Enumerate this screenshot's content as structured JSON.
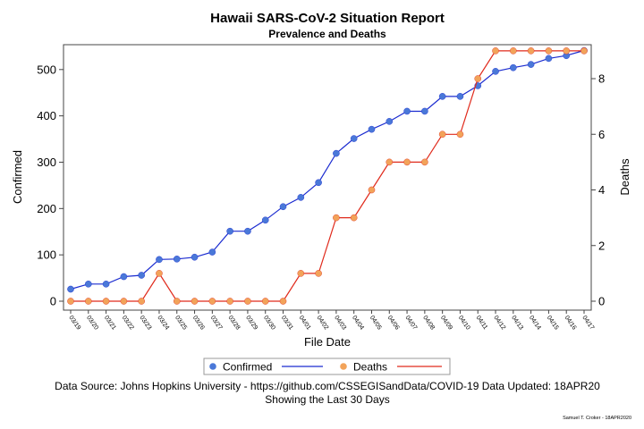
{
  "chart_data": {
    "type": "line",
    "title": "Hawaii SARS-CoV-2 Situation Report",
    "subtitle": "Prevalence and Deaths",
    "xlabel": "File Date",
    "ylabel_left": "Confirmed",
    "ylabel_right": "Deaths",
    "ylim_left": [
      0,
      550
    ],
    "yticks_left": [
      "0",
      "100",
      "200",
      "300",
      "400",
      "500"
    ],
    "ylim_right": [
      0,
      9
    ],
    "yticks_right": [
      "0",
      "2",
      "4",
      "6",
      "8"
    ],
    "grid": false,
    "legend_position": "bottom",
    "categories": [
      "03/19",
      "03/20",
      "03/21",
      "03/22",
      "03/23",
      "03/24",
      "03/25",
      "03/26",
      "03/27",
      "03/28",
      "03/29",
      "03/30",
      "03/31",
      "04/01",
      "04/02",
      "04/03",
      "04/04",
      "04/05",
      "04/06",
      "04/07",
      "04/08",
      "04/09",
      "04/10",
      "04/11",
      "04/12",
      "04/13",
      "04/14",
      "04/15",
      "04/16",
      "04/17"
    ],
    "series": [
      {
        "name": "Confirmed",
        "axis": "left",
        "line_color": "#1b2bd0",
        "marker_color": "#4a78d8",
        "values": [
          26,
          37,
          37,
          53,
          56,
          90,
          91,
          95,
          106,
          151,
          151,
          175,
          204,
          224,
          256,
          319,
          351,
          371,
          388,
          410,
          410,
          442,
          442,
          465,
          496,
          504,
          511,
          524,
          530,
          541
        ]
      },
      {
        "name": "Deaths",
        "axis": "right",
        "line_color": "#e02a1c",
        "marker_color": "#f2a35a",
        "values": [
          0,
          0,
          0,
          0,
          0,
          1,
          0,
          0,
          0,
          0,
          0,
          0,
          0,
          1,
          1,
          3,
          3,
          4,
          5,
          5,
          5,
          6,
          6,
          8,
          9,
          9,
          9,
          9,
          9,
          9
        ]
      }
    ]
  },
  "footer": {
    "source": "Data Source: Johns Hopkins University - https://github.com/CSSEGISandData/COVID-19 Data Updated: 18APR20",
    "period": "Showing the Last 30 Days",
    "credit": "Samuel T. Croker - 18APR2020"
  }
}
